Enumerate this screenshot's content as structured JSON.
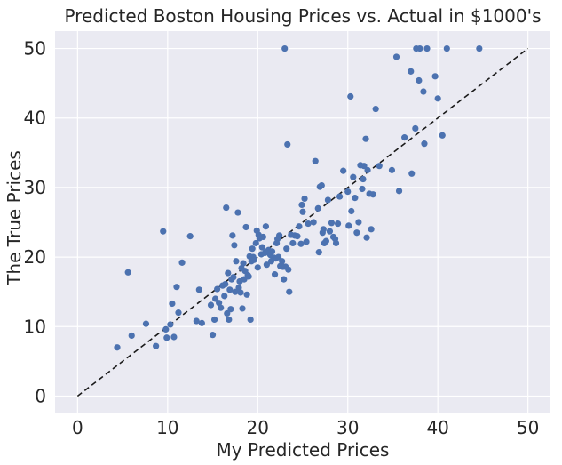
{
  "colors": {
    "background": "#eaeaf2",
    "grid": "#ffffff",
    "point": "#4c72b0",
    "line": "#1a1a1a",
    "text": "#262626"
  },
  "chart_data": {
    "type": "scatter",
    "title": "Predicted Boston Housing Prices vs. Actual in $1000's",
    "xlabel": "My Predicted Prices",
    "ylabel": "The True Prices",
    "xlim": [
      -2.5,
      52.5
    ],
    "ylim": [
      -2.5,
      52.5
    ],
    "xticks": [
      0,
      10,
      20,
      30,
      40,
      50
    ],
    "yticks": [
      0,
      10,
      20,
      30,
      40,
      50
    ],
    "grid": true,
    "reference_line": {
      "style": "dashed",
      "from": [
        0,
        0
      ],
      "to": [
        50,
        50
      ]
    },
    "series": [
      {
        "points": [
          [
            4.4,
            7.0
          ],
          [
            5.6,
            17.8
          ],
          [
            6.0,
            8.7
          ],
          [
            7.6,
            10.4
          ],
          [
            8.7,
            7.2
          ],
          [
            9.5,
            23.7
          ],
          [
            9.8,
            9.6
          ],
          [
            9.9,
            8.4
          ],
          [
            10.3,
            10.3
          ],
          [
            10.5,
            13.3
          ],
          [
            10.7,
            8.5
          ],
          [
            11.0,
            15.7
          ],
          [
            11.2,
            12.0
          ],
          [
            11.6,
            19.2
          ],
          [
            12.5,
            23.0
          ],
          [
            13.2,
            10.8
          ],
          [
            13.5,
            15.3
          ],
          [
            13.8,
            10.5
          ],
          [
            14.8,
            13.1
          ],
          [
            15.0,
            8.8
          ],
          [
            15.2,
            11.0
          ],
          [
            15.3,
            14.0
          ],
          [
            15.5,
            15.4
          ],
          [
            15.7,
            13.4
          ],
          [
            15.9,
            12.7
          ],
          [
            16.1,
            15.9
          ],
          [
            16.3,
            14.4
          ],
          [
            16.4,
            16.1
          ],
          [
            16.5,
            27.1
          ],
          [
            16.6,
            11.9
          ],
          [
            16.7,
            17.7
          ],
          [
            16.8,
            11.0
          ],
          [
            16.9,
            15.3
          ],
          [
            17.0,
            12.5
          ],
          [
            17.1,
            16.8
          ],
          [
            17.2,
            23.1
          ],
          [
            17.3,
            17.1
          ],
          [
            17.4,
            21.7
          ],
          [
            17.5,
            15.0
          ],
          [
            17.6,
            19.4
          ],
          [
            17.8,
            26.4
          ],
          [
            17.9,
            15.6
          ],
          [
            18.0,
            16.5
          ],
          [
            18.1,
            14.9
          ],
          [
            18.2,
            18.4
          ],
          [
            18.3,
            12.6
          ],
          [
            18.4,
            19.1
          ],
          [
            18.5,
            16.8
          ],
          [
            18.6,
            18.0
          ],
          [
            18.7,
            24.3
          ],
          [
            18.8,
            14.6
          ],
          [
            18.9,
            17.4
          ],
          [
            19.0,
            17.2
          ],
          [
            19.1,
            20.1
          ],
          [
            19.2,
            11.0
          ],
          [
            19.3,
            19.4
          ],
          [
            19.4,
            21.2
          ],
          [
            19.5,
            20.0
          ],
          [
            19.6,
            19.6
          ],
          [
            19.8,
            22.0
          ],
          [
            19.9,
            23.8
          ],
          [
            20.0,
            18.5
          ],
          [
            20.1,
            23.2
          ],
          [
            20.2,
            22.7
          ],
          [
            20.4,
            20.4
          ],
          [
            20.5,
            21.4
          ],
          [
            20.6,
            22.9
          ],
          [
            20.8,
            20.6
          ],
          [
            20.9,
            24.4
          ],
          [
            21.0,
            18.9
          ],
          [
            21.2,
            21.0
          ],
          [
            21.4,
            20.3
          ],
          [
            21.5,
            19.4
          ],
          [
            21.6,
            20.8
          ],
          [
            21.8,
            19.9
          ],
          [
            21.9,
            17.5
          ],
          [
            22.0,
            19.8
          ],
          [
            22.1,
            22.0
          ],
          [
            22.2,
            22.6
          ],
          [
            22.3,
            20.0
          ],
          [
            22.4,
            23.1
          ],
          [
            22.5,
            18.7
          ],
          [
            22.7,
            19.4
          ],
          [
            22.8,
            18.6
          ],
          [
            22.9,
            16.8
          ],
          [
            23.0,
            50.0
          ],
          [
            23.1,
            18.6
          ],
          [
            23.2,
            21.2
          ],
          [
            23.3,
            36.2
          ],
          [
            23.4,
            18.2
          ],
          [
            23.5,
            15.0
          ],
          [
            23.7,
            23.2
          ],
          [
            23.9,
            22.0
          ],
          [
            24.1,
            23.1
          ],
          [
            24.4,
            23.0
          ],
          [
            24.6,
            24.4
          ],
          [
            24.8,
            21.9
          ],
          [
            24.9,
            27.5
          ],
          [
            25.0,
            26.5
          ],
          [
            25.2,
            28.4
          ],
          [
            25.4,
            22.2
          ],
          [
            25.6,
            24.8
          ],
          [
            26.2,
            25.0
          ],
          [
            26.4,
            33.8
          ],
          [
            26.7,
            27.0
          ],
          [
            26.8,
            20.7
          ],
          [
            26.9,
            30.1
          ],
          [
            27.1,
            30.3
          ],
          [
            27.2,
            23.5
          ],
          [
            27.3,
            24.0
          ],
          [
            27.4,
            22.0
          ],
          [
            27.6,
            22.3
          ],
          [
            27.8,
            28.2
          ],
          [
            28.0,
            23.7
          ],
          [
            28.2,
            24.9
          ],
          [
            28.4,
            22.9
          ],
          [
            28.6,
            22.6
          ],
          [
            28.7,
            22.0
          ],
          [
            28.9,
            24.8
          ],
          [
            29.1,
            28.7
          ],
          [
            29.5,
            32.4
          ],
          [
            30.0,
            29.4
          ],
          [
            30.1,
            24.5
          ],
          [
            30.3,
            43.1
          ],
          [
            30.4,
            26.6
          ],
          [
            30.6,
            31.5
          ],
          [
            30.8,
            28.5
          ],
          [
            31.0,
            23.5
          ],
          [
            31.2,
            25.0
          ],
          [
            31.4,
            33.2
          ],
          [
            31.6,
            29.8
          ],
          [
            31.7,
            31.2
          ],
          [
            31.8,
            33.1
          ],
          [
            32.0,
            37.0
          ],
          [
            32.1,
            22.8
          ],
          [
            32.2,
            32.5
          ],
          [
            32.4,
            29.1
          ],
          [
            32.6,
            24.0
          ],
          [
            32.8,
            29.0
          ],
          [
            33.1,
            41.3
          ],
          [
            33.5,
            33.1
          ],
          [
            34.9,
            32.5
          ],
          [
            35.4,
            48.8
          ],
          [
            35.7,
            29.5
          ],
          [
            36.3,
            37.2
          ],
          [
            37.0,
            46.7
          ],
          [
            37.1,
            32.0
          ],
          [
            37.5,
            38.5
          ],
          [
            37.6,
            50.0
          ],
          [
            37.9,
            45.4
          ],
          [
            38.0,
            50.0
          ],
          [
            38.4,
            43.8
          ],
          [
            38.5,
            36.3
          ],
          [
            38.8,
            50.0
          ],
          [
            39.7,
            46.0
          ],
          [
            40.0,
            42.8
          ],
          [
            40.5,
            37.5
          ],
          [
            41.0,
            50.0
          ],
          [
            44.6,
            50.0
          ]
        ]
      }
    ]
  }
}
